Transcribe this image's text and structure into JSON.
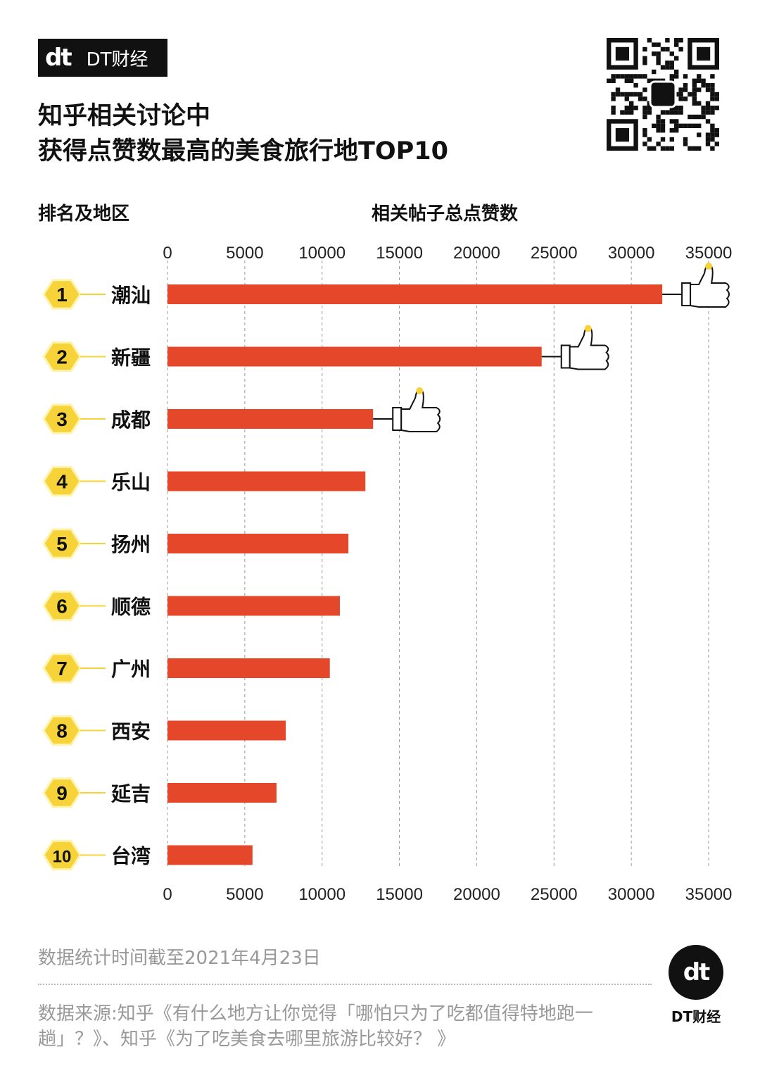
{
  "logo": {
    "mark": "dt",
    "text": "DT财经"
  },
  "title_line1": "知乎相关讨论中",
  "title_line2": "获得点赞数最高的美食旅行地TOP10",
  "left_header": "排名及地区",
  "axis_title": "相关帖子总点赞数",
  "chart_data": {
    "type": "bar",
    "orientation": "horizontal",
    "categories": [
      "潮汕",
      "新疆",
      "成都",
      "乐山",
      "扬州",
      "顺德",
      "广州",
      "西安",
      "延吉",
      "台湾"
    ],
    "ranks": [
      "1",
      "2",
      "3",
      "4",
      "5",
      "6",
      "7",
      "8",
      "9",
      "10"
    ],
    "values": [
      32000,
      24200,
      13300,
      12800,
      11700,
      11150,
      10500,
      7650,
      7050,
      5500
    ],
    "xlim": [
      0,
      35000
    ],
    "xticks": [
      0,
      5000,
      10000,
      15000,
      20000,
      25000,
      30000,
      35000
    ],
    "xlabel": "相关帖子总点赞数",
    "ylabel": "排名及地区",
    "grid": true,
    "bar_color": "#e4472a",
    "rank_badge_color": "#f7d33a",
    "thumbs_up_on_top": 3
  },
  "footnote_date": "数据统计时间截至2021年4月23日",
  "footnote_source_line1": "数据来源:知乎《有什么地方让你觉得「哪怕只为了吃都值得特地跑一",
  "footnote_source_line2": "趟」？》、知乎《为了吃美食去哪里旅游比较好？  》",
  "brand": {
    "mark": "dt",
    "name": "DT财经"
  }
}
